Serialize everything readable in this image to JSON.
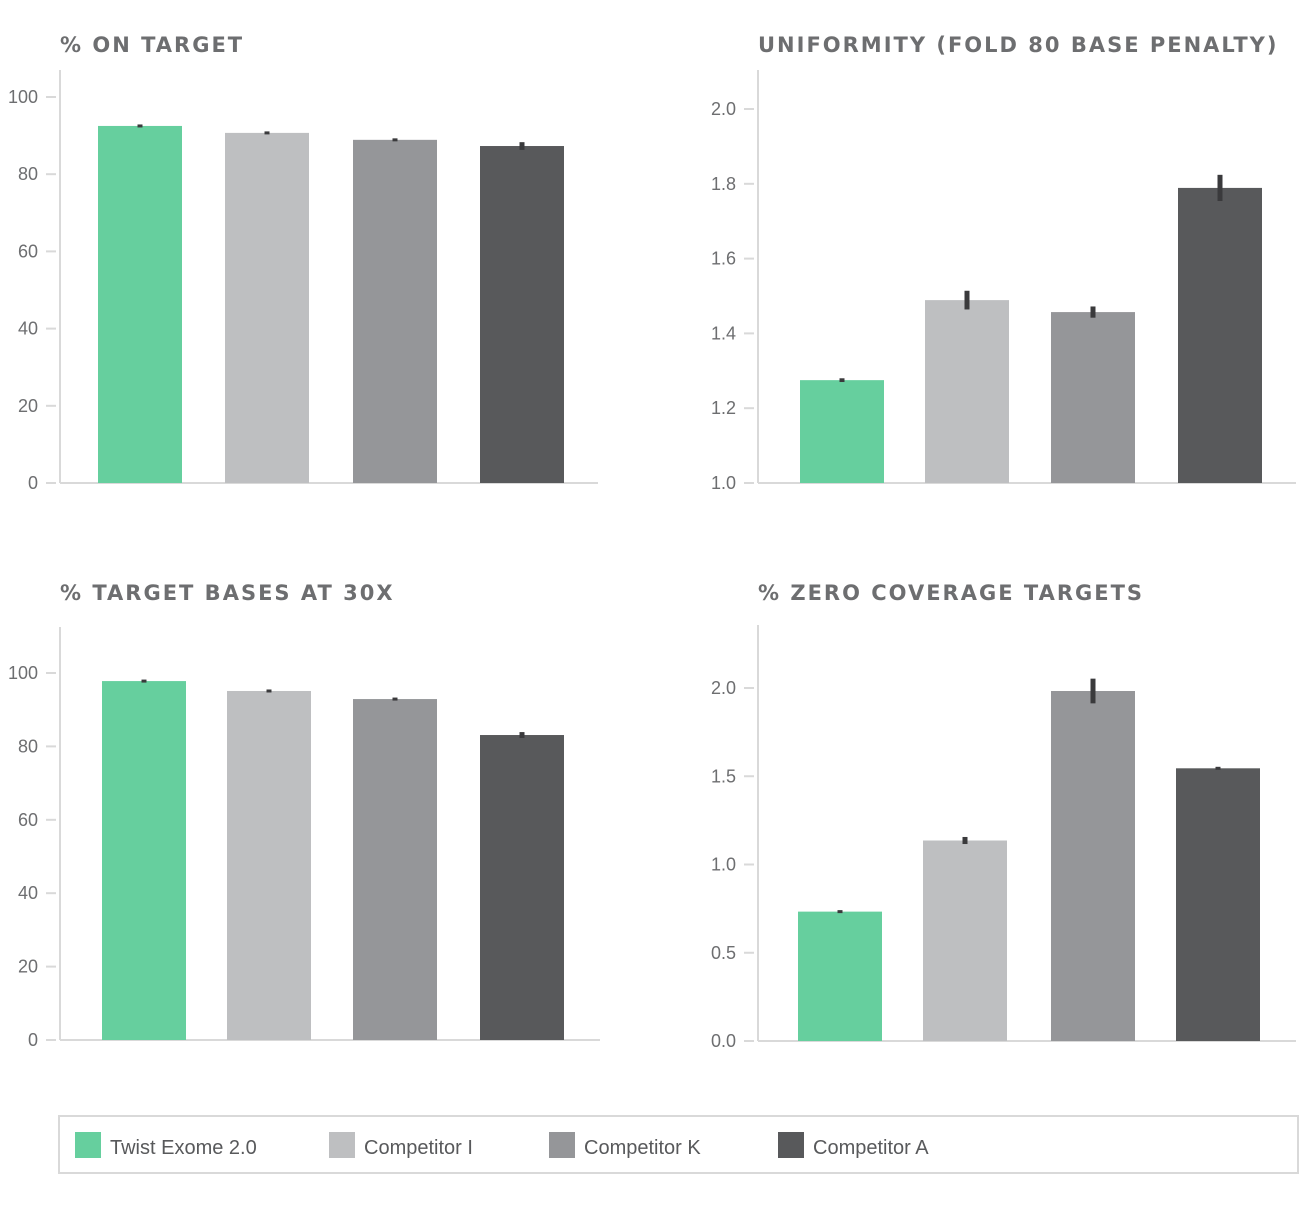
{
  "colors": {
    "Twist Exome 2.0": "#66cf9e",
    "Competitor I": "#bebfc1",
    "Competitor K": "#959699",
    "Competitor A": "#58595b"
  },
  "legend": [
    "Twist Exome 2.0",
    "Competitor I",
    "Competitor K",
    "Competitor A"
  ],
  "chart_data": [
    {
      "type": "bar",
      "title": "% ON TARGET",
      "categories": [
        "Twist Exome 2.0",
        "Competitor I",
        "Competitor K",
        "Competitor A"
      ],
      "values": [
        92.5,
        90.7,
        88.9,
        87.3
      ],
      "errors": [
        0.2,
        0.2,
        0.2,
        1.0
      ],
      "ylim": [
        0,
        100
      ],
      "yticks": [
        "0",
        "20",
        "40",
        "60",
        "80",
        "100"
      ],
      "tickvals": [
        0,
        20,
        40,
        60,
        80,
        100
      ]
    },
    {
      "type": "bar",
      "title": "UNIFORMITY (FOLD 80 BASE PENALTY)",
      "categories": [
        "Twist Exome 2.0",
        "Competitor I",
        "Competitor K",
        "Competitor A"
      ],
      "values": [
        1.275,
        1.489,
        1.457,
        1.789
      ],
      "errors": [
        0.005,
        0.025,
        0.015,
        0.035
      ],
      "ylim": [
        1.0,
        2.0
      ],
      "yticks": [
        "1.0",
        "1.2",
        "1.4",
        "1.6",
        "1.8",
        "2.0"
      ],
      "tickvals": [
        1.0,
        1.2,
        1.4,
        1.6,
        1.8,
        2.0
      ]
    },
    {
      "type": "bar",
      "title": "% TARGET BASES AT 30X",
      "categories": [
        "Twist Exome 2.0",
        "Competitor I",
        "Competitor K",
        "Competitor A"
      ],
      "values": [
        97.8,
        95.1,
        92.9,
        83.1
      ],
      "errors": [
        0.1,
        0.4,
        0.2,
        0.8
      ],
      "ylim": [
        0,
        100
      ],
      "yticks": [
        "0",
        "20",
        "40",
        "60",
        "80",
        "100"
      ],
      "tickvals": [
        0,
        20,
        40,
        60,
        80,
        100
      ]
    },
    {
      "type": "bar",
      "title": "% ZERO COVERAGE TARGETS",
      "categories": [
        "Twist Exome 2.0",
        "Competitor I",
        "Competitor K",
        "Competitor A"
      ],
      "values": [
        0.733,
        1.136,
        1.983,
        1.545
      ],
      "errors": [
        0.003,
        0.02,
        0.07,
        0.005
      ],
      "ylim": [
        0,
        2.0
      ],
      "yticks": [
        "0.0",
        "0.5",
        "1.0",
        "1.5",
        "2.0"
      ],
      "tickvals": [
        0,
        0.5,
        1.0,
        1.5,
        2.0
      ]
    }
  ]
}
